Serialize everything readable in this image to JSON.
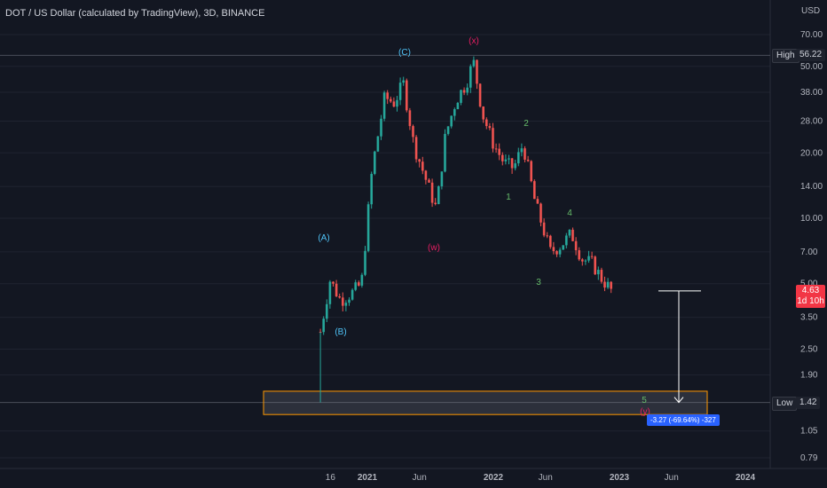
{
  "title": "DOT / US Dollar (calculated by TradingView), 3D, BINANCE",
  "currency": "USD",
  "y_axis_ticks": [
    "70.00",
    "50.00",
    "38.00",
    "28.00",
    "20.00",
    "14.00",
    "10.00",
    "7.00",
    "5.00",
    "3.50",
    "2.50",
    "1.90",
    "1.05",
    "0.79"
  ],
  "x_axis_ticks": [
    "16",
    "2021",
    "Jun",
    "2022",
    "Jun",
    "2023",
    "Jun",
    "2024"
  ],
  "high": {
    "label": "High",
    "value": "56.22"
  },
  "low": {
    "label": "Low",
    "value": "1.42"
  },
  "last_price": {
    "value": "4.63",
    "countdown": "1d 10h"
  },
  "measure": {
    "text": "-3.27 (-69.64%) -327"
  },
  "wave_labels": {
    "A": "(A)",
    "B": "(B)",
    "C": "(C)",
    "x": "(x)",
    "w": "(w)",
    "y": "(y)",
    "n1": "1",
    "n2": "2",
    "n3": "3",
    "n4": "4",
    "n5": "5"
  },
  "colors": {
    "background": "#131722",
    "up": "#26a69a",
    "down": "#ef5350",
    "cyan_label": "#4fc3f7",
    "red_label": "#e91e63",
    "green_label": "#66bb6a",
    "zone_border": "#ff9800",
    "price_tag": "#f23645",
    "measure_tag": "#2962ff"
  },
  "chart_data": {
    "type": "candlestick",
    "symbol": "DOT / US Dollar",
    "interval": "3D",
    "exchange": "BINANCE",
    "x": [
      "2020-08-18",
      "2020-09-15",
      "2020-10-15",
      "2020-11-15",
      "2020-12-15",
      "2021-01-15",
      "2021-02-20",
      "2021-03-20",
      "2021-04-15",
      "2021-05-15",
      "2021-06-20",
      "2021-07-20",
      "2021-08-15",
      "2021-09-15",
      "2021-10-15",
      "2021-11-04",
      "2021-12-01",
      "2022-01-01",
      "2022-02-01",
      "2022-03-01",
      "2022-03-28",
      "2022-05-01",
      "2022-06-15",
      "2022-07-15",
      "2022-08-15",
      "2022-09-15",
      "2022-10-15",
      "2022-11-10",
      "2022-12-10"
    ],
    "close": [
      3.0,
      5.2,
      4.2,
      4.5,
      5.0,
      17.0,
      36.0,
      34.0,
      42.0,
      22.0,
      15.0,
      11.0,
      24.0,
      35.0,
      42.0,
      53.0,
      30.0,
      22.0,
      18.0,
      17.0,
      22.0,
      12.0,
      7.0,
      7.5,
      8.5,
      6.5,
      6.2,
      5.3,
      4.63
    ],
    "y_scale": "log",
    "high": 56.22,
    "low": 1.42,
    "last": 4.63
  }
}
